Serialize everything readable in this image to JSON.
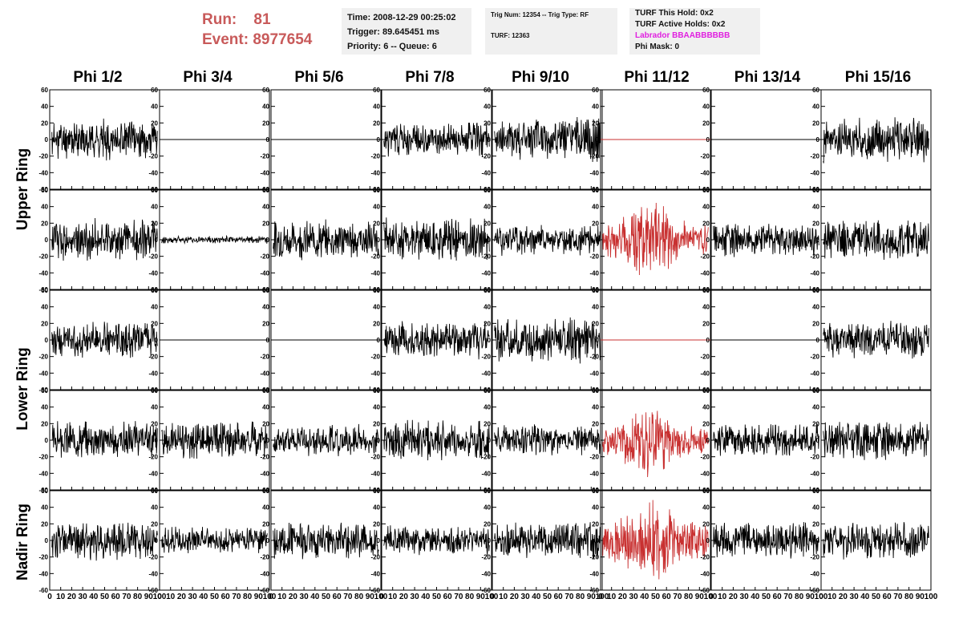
{
  "run_label": "Run:",
  "run_value": "81",
  "event_label": "Event:",
  "event_value": "8977654",
  "time_line": "Time: 2008-12-29 00:25:02",
  "trigger_line": "Trigger: 89.645451 ms",
  "priority_line": "Priority: 6 -- Queue: 6",
  "trig_num_line": "Trig Num: 12354 -- Trig Type: RF",
  "turf_line": "TURF: 12363",
  "turf_hold_line": "TURF This Hold: 0x2",
  "turf_active_line": "TURF Active Holds: 0x2",
  "labrador_line": "Labrador BBAABBBBBB",
  "phi_mask_line": "Phi Mask: 0",
  "colors": {
    "run": "#c85a5a",
    "labrador": "#e020e0",
    "trace": "#000000",
    "highlight_trace": "#c83030",
    "panel_bg": "#f0f0f0"
  },
  "columns": [
    "Phi 1/2",
    "Phi 3/4",
    "Phi 5/6",
    "Phi 7/8",
    "Phi 9/10",
    "Phi 11/12",
    "Phi 13/14",
    "Phi 15/16"
  ],
  "row_labels": [
    "Upper Ring",
    "Lower Ring",
    "Nadir Ring"
  ],
  "chart_data": {
    "type": "line",
    "layout": "grid 8 columns x 5 rows of waveform traces",
    "xlim": [
      0,
      100
    ],
    "ylim": [
      -60,
      60
    ],
    "x_ticks": [
      0,
      10,
      20,
      30,
      40,
      50,
      60,
      70,
      80,
      90,
      100
    ],
    "y_ticks": [
      -60,
      -40,
      -20,
      0,
      20,
      40,
      60
    ],
    "highlight_column": "Phi 11/12",
    "traces": [
      [
        {
          "amp": 16,
          "seed": 11
        },
        {
          "amp": 0,
          "seed": 0
        },
        {
          "amp": 0,
          "seed": 0
        },
        {
          "amp": 14,
          "seed": 31
        },
        {
          "amp": 18,
          "seed": 41
        },
        {
          "amp": 0,
          "seed": 0
        },
        {
          "amp": 0,
          "seed": 0
        },
        {
          "amp": 18,
          "seed": 71
        }
      ],
      [
        {
          "amp": 17,
          "seed": 12
        },
        {
          "amp": 3,
          "seed": 22
        },
        {
          "amp": 16,
          "seed": 32
        },
        {
          "amp": 18,
          "seed": 42
        },
        {
          "amp": 13,
          "seed": 52
        },
        {
          "amp": 22,
          "seed": 62
        },
        {
          "amp": 14,
          "seed": 72
        },
        {
          "amp": 16,
          "seed": 82
        }
      ],
      [
        {
          "amp": 15,
          "seed": 13
        },
        {
          "amp": 0,
          "seed": 0
        },
        {
          "amp": 0,
          "seed": 0
        },
        {
          "amp": 15,
          "seed": 33
        },
        {
          "amp": 18,
          "seed": 43
        },
        {
          "amp": 0,
          "seed": 0
        },
        {
          "amp": 0,
          "seed": 0
        },
        {
          "amp": 15,
          "seed": 73
        }
      ],
      [
        {
          "amp": 15,
          "seed": 14
        },
        {
          "amp": 15,
          "seed": 24
        },
        {
          "amp": 13,
          "seed": 34
        },
        {
          "amp": 17,
          "seed": 44
        },
        {
          "amp": 13,
          "seed": 54
        },
        {
          "amp": 20,
          "seed": 64
        },
        {
          "amp": 14,
          "seed": 74
        },
        {
          "amp": 16,
          "seed": 84
        }
      ],
      [
        {
          "amp": 16,
          "seed": 15
        },
        {
          "amp": 11,
          "seed": 25
        },
        {
          "amp": 15,
          "seed": 35
        },
        {
          "amp": 12,
          "seed": 45
        },
        {
          "amp": 15,
          "seed": 55
        },
        {
          "amp": 25,
          "seed": 65
        },
        {
          "amp": 15,
          "seed": 75
        },
        {
          "amp": 15,
          "seed": 85
        }
      ]
    ]
  }
}
